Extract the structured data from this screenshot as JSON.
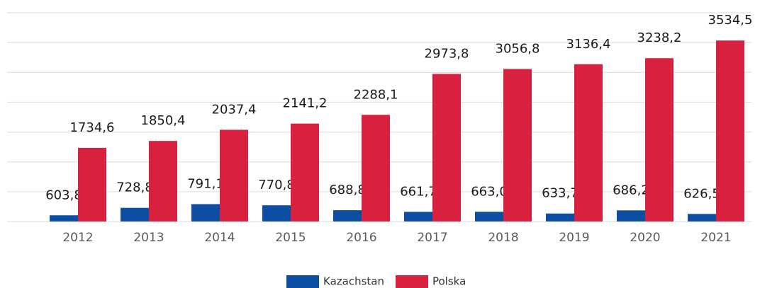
{
  "chart_data": {
    "type": "bar",
    "categories": [
      "2012",
      "2013",
      "2014",
      "2015",
      "2016",
      "2017",
      "2018",
      "2019",
      "2020",
      "2021"
    ],
    "series": [
      {
        "name": "Kazachstan",
        "color": "#0b4ea2",
        "values": [
          603.8,
          728.8,
          791.1,
          770.8,
          688.8,
          661.7,
          663.0,
          633.7,
          686.2,
          626.5
        ],
        "value_labels": [
          "603,8",
          "728,8",
          "791,1",
          "770,8",
          "688,8",
          "661,7",
          "663,0",
          "633,7",
          "686,2",
          "626,5"
        ]
      },
      {
        "name": "Polska",
        "color": "#d7213f",
        "values": [
          1734.6,
          1850.4,
          2037.4,
          2141.2,
          2288.1,
          2973.8,
          3056.8,
          3136.4,
          3238.2,
          3534.5
        ],
        "value_labels": [
          "1734,6",
          "1850,4",
          "2037,4",
          "2141,2",
          "2288,1",
          "2973,8",
          "3056,8",
          "3136,4",
          "3238,2",
          "3534,5"
        ]
      }
    ],
    "ylim": [
      500,
      4000
    ],
    "yticks": [
      500,
      1000,
      1500,
      2000,
      2500,
      3000,
      3500,
      4000
    ],
    "grid": true,
    "legend": "bottom"
  }
}
